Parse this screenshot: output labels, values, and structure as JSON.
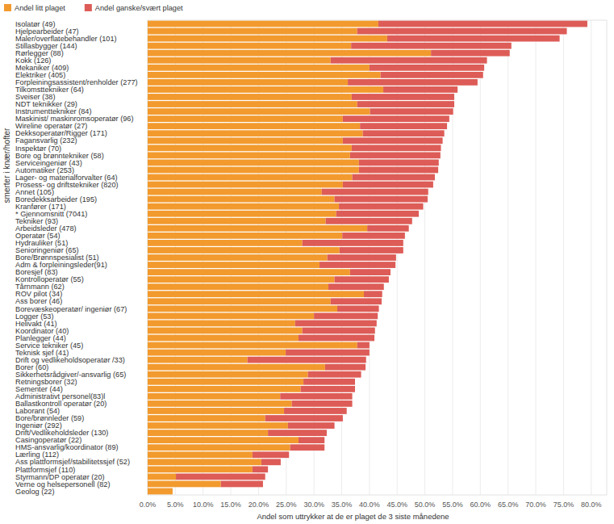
{
  "chart_data": {
    "type": "bar",
    "orientation": "horizontal",
    "stacked": true,
    "grid": true,
    "legend": "top-left",
    "xlabel": "Andel som uttrykker at de er plaget de 3 siste månedene",
    "ylabel": "smerter i knær/hofter",
    "xlim": [
      0,
      82.8
    ],
    "xticks": [
      {
        "value": 0,
        "label": "0.0%"
      },
      {
        "value": 5,
        "label": "5.0%"
      },
      {
        "value": 10,
        "label": "10.0%"
      },
      {
        "value": 15,
        "label": "15.0%"
      },
      {
        "value": 20,
        "label": "20.0%"
      },
      {
        "value": 25,
        "label": "25.0%"
      },
      {
        "value": 30,
        "label": "30.0%"
      },
      {
        "value": 35,
        "label": "35.0%"
      },
      {
        "value": 40,
        "label": "40.0%"
      },
      {
        "value": 45,
        "label": "45.0%"
      },
      {
        "value": 50,
        "label": "50.0%"
      },
      {
        "value": 55,
        "label": "55.0%"
      },
      {
        "value": 60,
        "label": "60.0%"
      },
      {
        "value": 65,
        "label": "65.0%"
      },
      {
        "value": 70,
        "label": "70.0%"
      },
      {
        "value": 75,
        "label": "75.0%"
      },
      {
        "value": 80,
        "label": "80.0%"
      }
    ],
    "categories": [
      "Isolatør (49)",
      "Hjelpearbeider (47)",
      "Maler/overflatebehandler (101)",
      "Stillasbygger (144)",
      "Rørlegger (88)",
      "Kokk (126)",
      "Mekaniker (409)",
      "Elektriker (405)",
      "Forpleiningsassistent/renholder (277)",
      "Tilkomsttekniker (64)",
      "Sveiser (38)",
      "NDT teknikker (29)",
      "Instrumenttekniker (84)",
      "Maskinist/ maskinromsoperatør (96)",
      "Wireline operatør (27)",
      "Dekksoperatør/Rigger (171)",
      "Fagansvarlig (232)",
      "Inspektør (70)",
      "Bore og brønntekniker (58)",
      "Serviceingeniør (43)",
      "Automatiker (253)",
      "Lager- og materialforvalter (64)",
      "Prosess- og driftstekniker (820)",
      "Annet (105)",
      "Boredekksarbeider (195)",
      "Kranfører (171)",
      "* Gjennomsnitt (7041)",
      "Tekniker (93)",
      "Arbeidsleder (478)",
      "Operatør (54)",
      "Hydrauliker (51)",
      "Senioringeniør (65)",
      "Bore/Brønnspesialist (51)",
      "Adm & forpleiningsleder(91)",
      "Boresjef (83)",
      "Kontrolloperatør (55)",
      "Tårnmann (62)",
      "ROV pilot (34)",
      "Ass borer (46)",
      "Borevæskeoperatør/ ingeniør (67)",
      "Logger (53)",
      "Helivakt (41)",
      "Koordinator (40)",
      "Planlegger (44)",
      "Service tekniker (45)",
      "Teknisk sjef (41)",
      "Drift og vedlikeholdsoperatør /33)",
      "Borer (60)",
      "Sikkerhetsrådgiver/-ansvarlig (65)",
      "Retningsborer (32)",
      "Sementer (44)",
      "Administrativt personel(83)l",
      "Ballastkontroll operatør (20)",
      "Laborant (54)",
      "Bore/brønnleder (59)",
      "Ingeniør (292)",
      "Drift/Vedlikeholdsleder (130)",
      "Casingoperatør (22)",
      "HMS-ansvarlig/koordinator (89)",
      "Lærling (112)",
      "Ass plattformsjef/stabilitetssjef (52)",
      "Plattformsjef (110)",
      "Styrmann/DP operatør (20)",
      "Verne og helsepersonell (82)",
      "Geolog (22)"
    ],
    "series": [
      {
        "name": "Andel litt plaget",
        "color": "#f29a2e",
        "values": [
          41.6,
          37.8,
          43.2,
          36.7,
          51.1,
          33.0,
          40.0,
          42.0,
          36.1,
          42.5,
          36.8,
          37.8,
          40.1,
          35.2,
          38.3,
          38.8,
          35.2,
          36.8,
          36.5,
          38.1,
          38.1,
          36.9,
          35.2,
          31.4,
          33.7,
          34.5,
          34.0,
          32.1,
          39.6,
          35.1,
          27.9,
          34.6,
          32.4,
          31.0,
          36.5,
          33.7,
          32.6,
          39.0,
          33.0,
          34.2,
          30.0,
          26.6,
          27.9,
          27.2,
          37.8,
          24.9,
          18.0,
          32.0,
          28.9,
          28.1,
          27.6,
          23.9,
          26.0,
          24.6,
          21.2,
          25.3,
          21.7,
          27.2,
          25.7,
          18.9,
          20.5,
          18.9,
          5.1,
          13.2,
          4.5
        ]
      },
      {
        "name": "Andel ganske/svært plaget",
        "color": "#dd5c57",
        "values": [
          37.7,
          37.8,
          31.1,
          28.9,
          14.2,
          28.2,
          20.7,
          18.5,
          23.4,
          13.4,
          18.5,
          17.5,
          15.0,
          19.2,
          15.7,
          14.7,
          18.0,
          16.1,
          16.3,
          14.4,
          14.3,
          14.9,
          16.3,
          19.2,
          16.8,
          15.2,
          14.9,
          15.6,
          7.5,
          11.3,
          18.2,
          11.5,
          12.4,
          13.7,
          7.3,
          9.8,
          10.0,
          3.3,
          9.2,
          7.5,
          11.5,
          14.7,
          13.1,
          13.7,
          2.2,
          15.1,
          21.4,
          7.3,
          9.6,
          9.3,
          9.8,
          13.0,
          10.9,
          11.3,
          14.0,
          8.4,
          10.6,
          4.7,
          6.2,
          6.6,
          3.5,
          2.8,
          16.1,
          7.6,
          0
        ]
      }
    ]
  }
}
